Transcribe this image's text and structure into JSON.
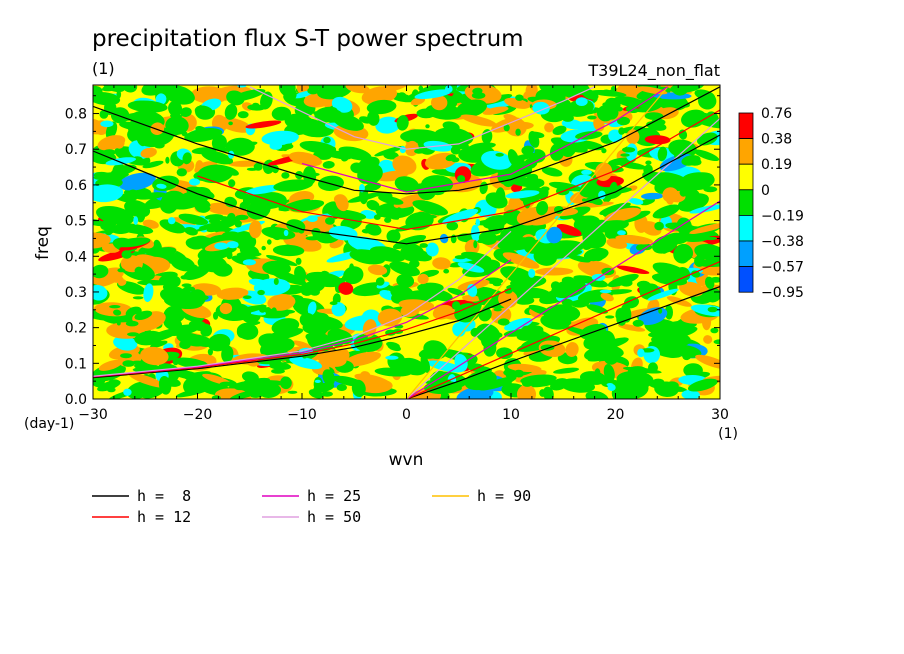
{
  "chart_data": {
    "type": "heatmap",
    "title": "precipitation flux S-T power spectrum",
    "units_label": "(1)",
    "run_label": "T39L24_non_flat",
    "xlabel": "wvn",
    "ylabel": "freq",
    "x_unit": "(1)",
    "y_unit": "(day-1)",
    "xlim": [
      -30,
      30
    ],
    "ylim": [
      0,
      0.88
    ],
    "x_ticks": [
      "-30",
      "-20",
      "-10",
      "0",
      "10",
      "20",
      "30"
    ],
    "y_ticks": [
      "0.0",
      "0.1",
      "0.2",
      "0.3",
      "0.4",
      "0.5",
      "0.6",
      "0.7",
      "0.8"
    ],
    "colorbar": {
      "levels": [
        "0.76",
        "0.38",
        "0.19",
        "0",
        "-0.19",
        "-0.38",
        "-0.57",
        "-0.95"
      ],
      "colors": [
        "#ff0000",
        "#ffa500",
        "#ffff00",
        "#00e000",
        "#00ffff",
        "#00a0ff",
        "#0050ff"
      ]
    },
    "background_color": "#ffff00",
    "series": [
      {
        "name": "h =  8",
        "color": "#000000"
      },
      {
        "name": "h = 12",
        "color": "#ff0000"
      },
      {
        "name": "h = 25",
        "color": "#e000c0"
      },
      {
        "name": "h = 50",
        "color": "#e0a0e0"
      },
      {
        "name": "h = 90",
        "color": "#ffc000"
      }
    ],
    "dispersion_curves": {
      "kelvin": [
        {
          "h": 8,
          "color": "#000000",
          "points": [
            [
              0,
              0.0
            ],
            [
              5,
              0.05
            ],
            [
              10,
              0.105
            ],
            [
              20,
              0.21
            ],
            [
              30,
              0.315
            ]
          ]
        },
        {
          "h": 12,
          "color": "#ff0000",
          "points": [
            [
              0,
              0.0
            ],
            [
              10,
              0.128
            ],
            [
              20,
              0.257
            ],
            [
              30,
              0.385
            ]
          ]
        },
        {
          "h": 25,
          "color": "#e000c0",
          "points": [
            [
              0,
              0.0
            ],
            [
              10,
              0.185
            ],
            [
              20,
              0.37
            ],
            [
              30,
              0.555
            ]
          ]
        },
        {
          "h": 50,
          "color": "#e0a0e0",
          "points": [
            [
              0,
              0.0
            ],
            [
              10,
              0.262
            ],
            [
              20,
              0.524
            ],
            [
              30,
              0.786
            ]
          ]
        },
        {
          "h": 90,
          "color": "#ffc000",
          "points": [
            [
              0,
              0.0
            ],
            [
              10,
              0.35
            ],
            [
              20,
              0.7
            ],
            [
              25,
              0.875
            ]
          ]
        }
      ],
      "rossby": [
        {
          "h": 8,
          "color": "#000000",
          "points": [
            [
              -30,
              0.06
            ],
            [
              -20,
              0.085
            ],
            [
              -10,
              0.12
            ],
            [
              -5,
              0.145
            ],
            [
              0,
              0.18
            ],
            [
              5,
              0.22
            ],
            [
              10,
              0.28
            ]
          ]
        },
        {
          "h": 12,
          "color": "#ff0000",
          "points": [
            [
              -30,
              0.062
            ],
            [
              -20,
              0.088
            ],
            [
              -10,
              0.125
            ],
            [
              -5,
              0.155
            ],
            [
              0,
              0.195
            ],
            [
              5,
              0.245
            ],
            [
              10,
              0.31
            ]
          ]
        },
        {
          "h": 25,
          "color": "#e000c0",
          "points": [
            [
              -30,
              0.063
            ],
            [
              -20,
              0.09
            ],
            [
              -10,
              0.13
            ],
            [
              -5,
              0.165
            ],
            [
              0,
              0.215
            ],
            [
              5,
              0.29
            ],
            [
              10,
              0.39
            ]
          ]
        },
        {
          "h": 50,
          "color": "#e0a0e0",
          "points": [
            [
              -30,
              0.064
            ],
            [
              -20,
              0.092
            ],
            [
              -10,
              0.135
            ],
            [
              -5,
              0.175
            ],
            [
              0,
              0.235
            ],
            [
              5,
              0.335
            ],
            [
              10,
              0.47
            ]
          ]
        }
      ],
      "inertia_gravity": [
        {
          "h": 8,
          "color": "#000000",
          "points": [
            [
              -30,
              0.695
            ],
            [
              -20,
              0.575
            ],
            [
              -10,
              0.475
            ],
            [
              0,
              0.435
            ],
            [
              10,
              0.48
            ],
            [
              20,
              0.58
            ],
            [
              30,
              0.74
            ]
          ]
        },
        {
          "h": 8,
          "color": "#000000",
          "points": [
            [
              -30,
              0.82
            ],
            [
              -20,
              0.715
            ],
            [
              -10,
              0.625
            ],
            [
              -5,
              0.585
            ],
            [
              0,
              0.575
            ],
            [
              5,
              0.585
            ],
            [
              10,
              0.615
            ],
            [
              20,
              0.72
            ],
            [
              30,
              0.875
            ]
          ]
        },
        {
          "h": 12,
          "color": "#ff0000",
          "points": [
            [
              -20,
              0.625
            ],
            [
              -10,
              0.525
            ],
            [
              0,
              0.475
            ],
            [
              10,
              0.525
            ],
            [
              20,
              0.64
            ],
            [
              30,
              0.81
            ]
          ]
        },
        {
          "h": 25,
          "color": "#e000c0",
          "points": [
            [
              -10,
              0.66
            ],
            [
              0,
              0.58
            ],
            [
              10,
              0.63
            ],
            [
              20,
              0.78
            ],
            [
              25,
              0.875
            ]
          ]
        },
        {
          "h": 50,
          "color": "#e0a0e0",
          "points": [
            [
              -15,
              0.875
            ],
            [
              -5,
              0.735
            ],
            [
              0,
              0.7
            ],
            [
              5,
              0.715
            ],
            [
              15,
              0.835
            ],
            [
              18,
              0.875
            ]
          ]
        }
      ]
    }
  }
}
